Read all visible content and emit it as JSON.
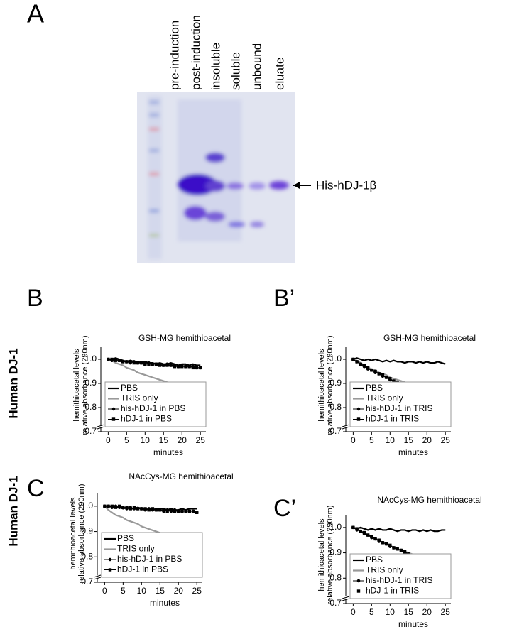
{
  "figure": {
    "panel_a": "A",
    "lane_labels": [
      "pre-induction",
      "post-induction",
      "insoluble",
      "soluble",
      "unbound",
      "eluate"
    ],
    "band_label": "His-hDJ-1β",
    "side_labels": [
      "Human DJ-1",
      "Human DJ-1"
    ]
  },
  "chart_data": [
    {
      "type": "line",
      "panel": "B",
      "title": "GSH-MG hemithioacetal",
      "y_label": [
        "hemithioacetal levels",
        "relative absorbance (290nm)"
      ],
      "x_label": "minutes",
      "x": [
        0,
        1,
        2,
        3,
        4,
        5,
        6,
        7,
        8,
        9,
        10,
        11,
        12,
        13,
        14,
        15,
        16,
        17,
        18,
        19,
        20,
        21,
        22,
        23,
        24,
        25
      ],
      "xlim": [
        -2,
        26.5
      ],
      "xticks": [
        0,
        5,
        10,
        15,
        20,
        25
      ],
      "ylim": [
        0.7,
        1.05
      ],
      "yticks": [
        0.7,
        0.8,
        0.9,
        {
          "value": 1,
          "label": "1.0"
        }
      ],
      "axis_break": true,
      "legend": "bottom-left",
      "series": [
        {
          "name": "PBS",
          "color": "#000000",
          "marker": "none",
          "values": [
            1.0,
            1.0,
            1.005,
            1.0,
            0.995,
            0.99,
            0.995,
            0.99,
            0.99,
            0.985,
            0.99,
            0.985,
            0.985,
            0.98,
            0.985,
            0.98,
            0.98,
            0.985,
            0.98,
            0.975,
            0.98,
            0.98,
            0.975,
            0.98,
            0.975,
            0.975
          ]
        },
        {
          "name": "TRIS only",
          "color": "#999999",
          "marker": "none",
          "values": [
            1.0,
            0.995,
            0.985,
            0.98,
            0.975,
            0.965,
            0.96,
            0.955,
            0.945,
            0.94,
            0.935,
            0.93,
            0.925,
            0.92,
            0.915,
            0.91,
            0.905,
            0.9,
            0.895,
            0.89,
            0.885,
            0.88,
            0.875,
            0.87,
            0.865,
            0.86
          ]
        },
        {
          "name": "his-hDJ-1 in PBS",
          "color": "#000000",
          "marker": "circle",
          "values": [
            1.0,
            0.995,
            1.0,
            0.995,
            0.99,
            0.99,
            0.985,
            0.99,
            0.985,
            0.985,
            0.98,
            0.985,
            0.98,
            0.98,
            0.98,
            0.975,
            0.98,
            0.975,
            0.975,
            0.97,
            0.975,
            0.97,
            0.97,
            0.97,
            0.965,
            0.965
          ]
        },
        {
          "name": "hDJ-1 in PBS",
          "color": "#000000",
          "marker": "square",
          "values": [
            1.0,
            1.0,
            0.995,
            0.995,
            0.99,
            0.99,
            0.99,
            0.985,
            0.985,
            0.985,
            0.98,
            0.98,
            0.98,
            0.98,
            0.975,
            0.975,
            0.975,
            0.975,
            0.97,
            0.97,
            0.97,
            0.97,
            0.97,
            0.965,
            0.965,
            0.965
          ]
        }
      ]
    },
    {
      "type": "line",
      "panel": "B’",
      "title": "GSH-MG hemithioacetal",
      "y_label": [
        "hemithioacetal levels",
        "relative absorbance (290nm)"
      ],
      "x_label": "minutes",
      "x": [
        0,
        1,
        2,
        3,
        4,
        5,
        6,
        7,
        8,
        9,
        10,
        11,
        12,
        13,
        14,
        15,
        16,
        17,
        18,
        19,
        20,
        21,
        22,
        23,
        24,
        25
      ],
      "xlim": [
        -2,
        26.5
      ],
      "xticks": [
        0,
        5,
        10,
        15,
        20,
        25
      ],
      "ylim": [
        0.7,
        1.05
      ],
      "yticks": [
        0.7,
        0.8,
        0.9,
        {
          "value": 1,
          "label": "1.0"
        }
      ],
      "axis_break": true,
      "legend": "bottom-left",
      "series": [
        {
          "name": "PBS",
          "color": "#000000",
          "marker": "none",
          "values": [
            1.0,
            1.005,
            1.0,
            0.995,
            1.0,
            0.995,
            1.0,
            0.995,
            0.99,
            0.995,
            0.99,
            0.995,
            0.99,
            0.99,
            0.985,
            0.99,
            0.99,
            0.985,
            0.99,
            0.985,
            0.99,
            0.985,
            0.985,
            0.99,
            0.985,
            0.98
          ]
        },
        {
          "name": "TRIS only",
          "color": "#999999",
          "marker": "none",
          "values": [
            1.0,
            0.995,
            0.985,
            0.975,
            0.965,
            0.96,
            0.955,
            0.945,
            0.94,
            0.935,
            0.925,
            0.92,
            0.915,
            0.91,
            0.905,
            0.9,
            0.895,
            0.89,
            0.885,
            0.88,
            0.875,
            0.87,
            0.865,
            0.865,
            0.86,
            0.86
          ]
        },
        {
          "name": "his-hDJ-1 in TRIS",
          "color": "#000000",
          "marker": "circle",
          "values": [
            1.0,
            0.99,
            0.98,
            0.97,
            0.96,
            0.955,
            0.945,
            0.94,
            0.93,
            0.925,
            0.915,
            0.91,
            0.905,
            0.9,
            0.89,
            0.885,
            0.875,
            0.87,
            0.865,
            0.855,
            0.85,
            0.845,
            0.84,
            0.835,
            0.83,
            0.825
          ]
        },
        {
          "name": "hDJ-1 in TRIS",
          "color": "#000000",
          "marker": "square",
          "values": [
            1.0,
            0.99,
            0.98,
            0.975,
            0.965,
            0.955,
            0.95,
            0.94,
            0.935,
            0.925,
            0.92,
            0.91,
            0.905,
            0.9,
            0.89,
            0.885,
            0.88,
            0.87,
            0.865,
            0.86,
            0.855,
            0.85,
            0.845,
            0.84,
            0.835,
            0.835
          ]
        }
      ]
    },
    {
      "type": "line",
      "panel": "C",
      "title": "NAcCys-MG hemithioacetal",
      "y_label": [
        "hemithioacetal levels",
        "relative absorbance (290nm)"
      ],
      "x_label": "minutes",
      "x": [
        0,
        1,
        2,
        3,
        4,
        5,
        6,
        7,
        8,
        9,
        10,
        11,
        12,
        13,
        14,
        15,
        16,
        17,
        18,
        19,
        20,
        21,
        22,
        23,
        24,
        25
      ],
      "xlim": [
        -2,
        26.5
      ],
      "xticks": [
        0,
        5,
        10,
        15,
        20,
        25
      ],
      "ylim": [
        0.7,
        1.05
      ],
      "yticks": [
        0.7,
        0.8,
        0.9,
        {
          "value": 1,
          "label": "1.0"
        }
      ],
      "axis_break": true,
      "legend": "bottom-left",
      "series": [
        {
          "name": "PBS",
          "color": "#000000",
          "marker": "none",
          "values": [
            1.0,
            1.0,
            1.0,
            0.995,
            0.995,
            0.99,
            0.995,
            0.99,
            0.99,
            0.995,
            0.99,
            0.99,
            0.985,
            0.99,
            0.985,
            0.99,
            0.99,
            0.985,
            0.99,
            0.985,
            0.985,
            0.99,
            0.985,
            0.99,
            0.99,
            0.99
          ]
        },
        {
          "name": "TRIS only",
          "color": "#999999",
          "marker": "none",
          "values": [
            1.0,
            0.985,
            0.975,
            0.965,
            0.96,
            0.955,
            0.945,
            0.94,
            0.935,
            0.93,
            0.92,
            0.915,
            0.91,
            0.905,
            0.9,
            0.895,
            0.89,
            0.885,
            0.88,
            0.88,
            0.875,
            0.87,
            0.865,
            0.865,
            0.865,
            0.86
          ]
        },
        {
          "name": "his-hDJ-1 in PBS",
          "color": "#000000",
          "marker": "circle",
          "values": [
            1.0,
            1.0,
            0.995,
            1.0,
            0.995,
            0.995,
            0.99,
            0.995,
            0.99,
            0.99,
            0.99,
            0.985,
            0.99,
            0.985,
            0.985,
            0.985,
            0.98,
            0.985,
            0.98,
            0.985,
            0.98,
            0.98,
            0.98,
            0.98,
            0.98,
            0.975
          ]
        },
        {
          "name": "hDJ-1 in PBS",
          "color": "#000000",
          "marker": "square",
          "values": [
            1.0,
            1.0,
            1.0,
            0.995,
            1.0,
            0.995,
            0.995,
            0.99,
            0.995,
            0.99,
            0.99,
            0.99,
            0.985,
            0.99,
            0.985,
            0.985,
            0.985,
            0.98,
            0.985,
            0.98,
            0.98,
            0.98,
            0.98,
            0.98,
            0.98,
            0.975
          ]
        }
      ]
    },
    {
      "type": "line",
      "panel": "C’",
      "title": "NAcCys-MG hemithioacetal",
      "y_label": [
        "hemithioacetal levels",
        "relative absorbance (290nm)"
      ],
      "x_label": "minutes",
      "x": [
        0,
        1,
        2,
        3,
        4,
        5,
        6,
        7,
        8,
        9,
        10,
        11,
        12,
        13,
        14,
        15,
        16,
        17,
        18,
        19,
        20,
        21,
        22,
        23,
        24,
        25
      ],
      "xlim": [
        -2,
        26.5
      ],
      "xticks": [
        0,
        5,
        10,
        15,
        20,
        25
      ],
      "ylim": [
        0.7,
        1.05
      ],
      "yticks": [
        0.7,
        0.8,
        0.9,
        {
          "value": 1,
          "label": "1.0"
        }
      ],
      "axis_break": true,
      "legend": "bottom-left",
      "series": [
        {
          "name": "PBS",
          "color": "#000000",
          "marker": "none",
          "values": [
            1.0,
            0.995,
            1.0,
            0.995,
            0.99,
            0.995,
            0.99,
            0.995,
            0.99,
            0.99,
            0.995,
            0.99,
            0.985,
            0.99,
            0.99,
            0.985,
            0.99,
            0.99,
            0.985,
            0.99,
            0.985,
            0.99,
            0.985,
            0.985,
            0.99,
            0.99
          ]
        },
        {
          "name": "TRIS only",
          "color": "#999999",
          "marker": "none",
          "values": [
            1.0,
            0.995,
            0.985,
            0.98,
            0.97,
            0.965,
            0.955,
            0.95,
            0.94,
            0.935,
            0.93,
            0.92,
            0.915,
            0.91,
            0.905,
            0.9,
            0.895,
            0.89,
            0.885,
            0.88,
            0.875,
            0.87,
            0.865,
            0.865,
            0.86,
            0.86
          ]
        },
        {
          "name": "his-hDJ-1 in TRIS",
          "color": "#000000",
          "marker": "circle",
          "values": [
            1.0,
            0.99,
            0.985,
            0.975,
            0.97,
            0.96,
            0.955,
            0.945,
            0.94,
            0.935,
            0.925,
            0.92,
            0.915,
            0.91,
            0.9,
            0.895,
            0.89,
            0.885,
            0.88,
            0.875,
            0.87,
            0.865,
            0.86,
            0.855,
            0.855,
            0.85
          ]
        },
        {
          "name": "hDJ-1 in TRIS",
          "color": "#000000",
          "marker": "square",
          "values": [
            1.0,
            0.995,
            0.985,
            0.98,
            0.97,
            0.965,
            0.955,
            0.95,
            0.94,
            0.935,
            0.93,
            0.92,
            0.915,
            0.91,
            0.905,
            0.895,
            0.89,
            0.885,
            0.88,
            0.875,
            0.87,
            0.865,
            0.86,
            0.855,
            0.855,
            0.855
          ]
        }
      ]
    }
  ]
}
